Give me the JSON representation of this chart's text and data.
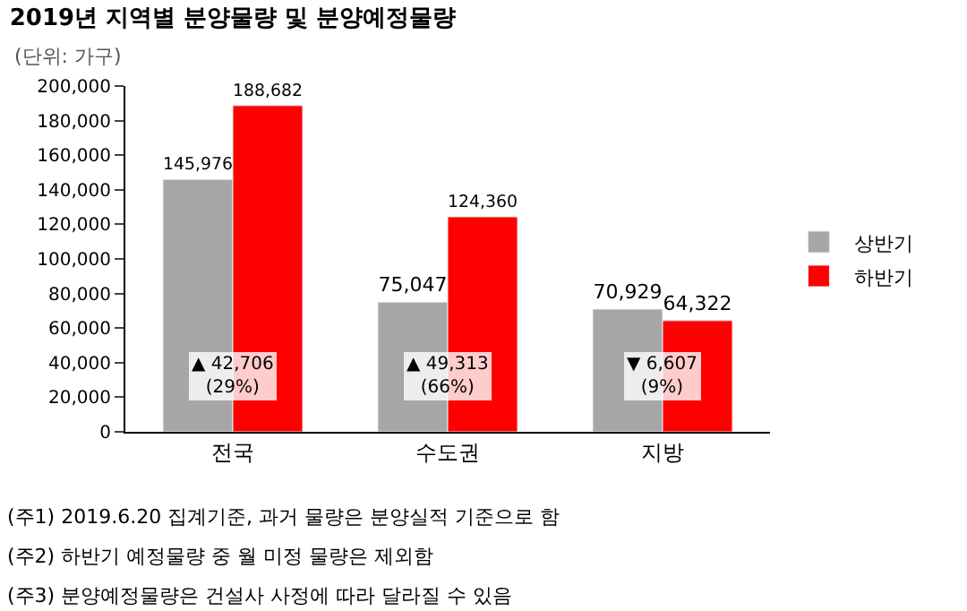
{
  "chart_data": {
    "type": "bar",
    "title": "2019년 지역별 분양물량 및 분양예정물량",
    "categories": [
      "전국",
      "수도권",
      "지방"
    ],
    "series": [
      {
        "name": "상반기",
        "color": "#a6a6a6",
        "values": [
          145976,
          75047,
          70929
        ],
        "value_labels": [
          "145,976",
          "75,047",
          "70,929"
        ]
      },
      {
        "name": "하반기",
        "color": "#ff0000",
        "values": [
          188682,
          124360,
          64322
        ],
        "value_labels": [
          "188,682",
          "124,360",
          "64,322"
        ]
      }
    ],
    "ylim": [
      0,
      200000
    ],
    "yticks": [
      {
        "value": 0,
        "label": "0"
      },
      {
        "value": 20000,
        "label": "20,000"
      },
      {
        "value": 40000,
        "label": "40,000"
      },
      {
        "value": 60000,
        "label": "60,000"
      },
      {
        "value": 80000,
        "label": "80,000"
      },
      {
        "value": 100000,
        "label": "100,000"
      },
      {
        "value": 120000,
        "label": "120,000"
      },
      {
        "value": 140000,
        "label": "140,000"
      },
      {
        "value": 160000,
        "label": "160,000"
      },
      {
        "value": 180000,
        "label": "180,000"
      },
      {
        "value": 200000,
        "label": "200,000"
      }
    ],
    "legend": "right",
    "annotations": [
      {
        "text": "▲ 42,706\n(29%)",
        "x": "전국",
        "y": 32000
      },
      {
        "text": "▲ 49,313\n(66%)",
        "x": "수도권",
        "y": 32000
      },
      {
        "text": "▼ 6,607\n(9%)",
        "x": "지방",
        "y": 32000
      },
      "(단위: 가구)",
      "(주1) 2019.6.20 집계기준, 과거 물량은 분양실적 기준으로 함",
      "(주2) 하반기 예정물량 중 월 미정 물량은 제외함",
      "(주3) 분양예정물량은 건설사 사정에 따라 달라질 수 있음"
    ]
  }
}
